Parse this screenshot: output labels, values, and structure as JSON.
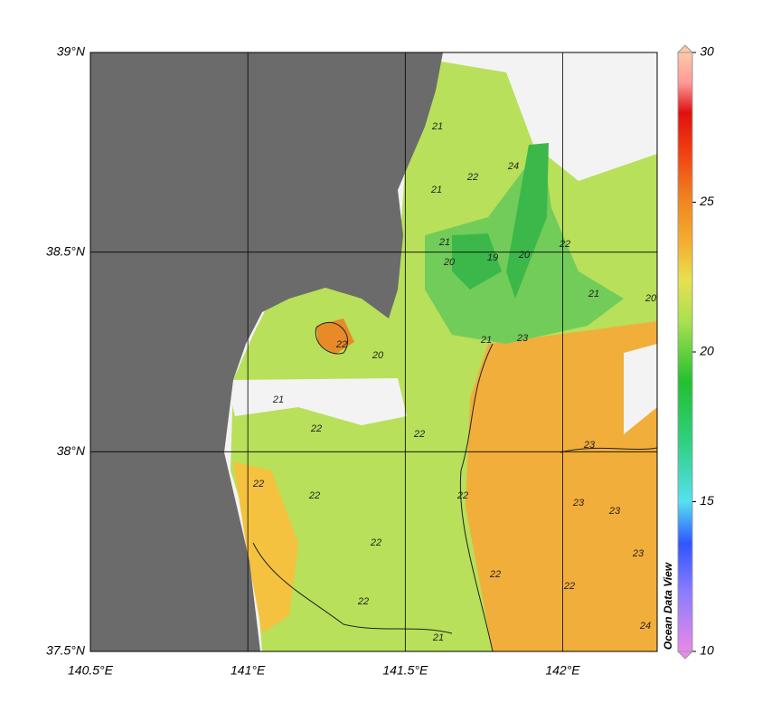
{
  "map": {
    "xticks": [
      {
        "value": 140.5,
        "label": "140.5°E"
      },
      {
        "value": 141,
        "label": "141°E"
      },
      {
        "value": 141.5,
        "label": "141.5°E"
      },
      {
        "value": 142,
        "label": "142°E"
      }
    ],
    "yticks": [
      {
        "value": 37.5,
        "label": "37.5°N"
      },
      {
        "value": 38,
        "label": "38°N"
      },
      {
        "value": 38.5,
        "label": "38.5°N"
      },
      {
        "value": 39,
        "label": "39°N"
      }
    ],
    "xlim": [
      140.5,
      142.3
    ],
    "ylim": [
      37.5,
      39
    ],
    "grid": true,
    "contour_labels": [
      21,
      22,
      24,
      21,
      21,
      20,
      19,
      20,
      22,
      21,
      20,
      23,
      22,
      20,
      21,
      21,
      22,
      22,
      22,
      22,
      23,
      22,
      23,
      22,
      23,
      23,
      22,
      22,
      22,
      21,
      24
    ],
    "colorbar": {
      "lim": [
        10,
        30
      ],
      "ticks": [
        10,
        15,
        20,
        25,
        30
      ]
    },
    "watermark": "Ocean Data View"
  }
}
